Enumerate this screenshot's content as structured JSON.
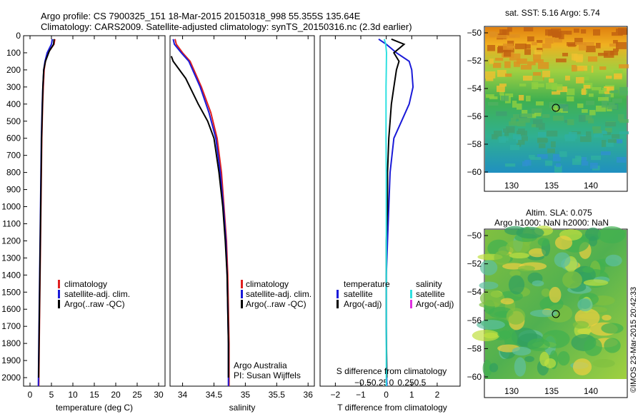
{
  "figure": {
    "title_line1": "Argo profile: CS 7900325_151 18-Mar-2015 20150318_998 55.355S 135.64E",
    "title_line2": "Climatology: CARS2009. Satellite-adjusted climatology: synTS_20150316.nc (2.3d earlier)",
    "credit": "©IMOS 23-Mar-2015 20:42:33",
    "institution": "Argo Australia",
    "pi": "PI: Susan Wijffels"
  },
  "colors": {
    "climatology": "#e02020",
    "satellite": "#1a1ad8",
    "argo": "#000000",
    "salinity_satellite": "#30e0e0",
    "salinity_argo": "#e030e0"
  },
  "chart_data": [
    {
      "id": "temperature",
      "type": "line",
      "xlabel": "temperature (deg C)",
      "ylabel": "",
      "xlim": [
        -1.5,
        31.5
      ],
      "ylim": [
        0,
        2050
      ],
      "xticks": [
        0,
        5,
        10,
        15,
        20,
        25,
        30
      ],
      "yticks": [
        0,
        100,
        200,
        300,
        400,
        500,
        600,
        700,
        800,
        900,
        1000,
        1100,
        1200,
        1300,
        1400,
        1500,
        1600,
        1700,
        1800,
        1900,
        2000
      ],
      "legend": [
        "climatology",
        "satellite-adj. clim.",
        "Argo(..raw -QC)"
      ],
      "series": [
        {
          "name": "climatology",
          "x": [
            5.8,
            5.6,
            4.2,
            3.6,
            3.3,
            3.1,
            2.95,
            2.85,
            2.75,
            2.65,
            2.55,
            2.45,
            2.35,
            2.25,
            2.15,
            2.05
          ],
          "y": [
            20,
            50,
            100,
            150,
            200,
            300,
            400,
            500,
            600,
            800,
            1000,
            1200,
            1400,
            1600,
            1800,
            2050
          ]
        },
        {
          "name": "satellite-adj. clim.",
          "x": [
            5.2,
            5.0,
            4.0,
            3.5,
            3.2,
            3.0,
            2.85,
            2.75,
            2.65,
            2.55,
            2.45,
            2.35,
            2.25,
            2.15,
            2.05,
            1.95
          ],
          "y": [
            20,
            50,
            100,
            150,
            200,
            300,
            400,
            500,
            600,
            800,
            1000,
            1200,
            1400,
            1600,
            1800,
            2050
          ]
        },
        {
          "name": "Argo(..raw -QC)",
          "x": [
            5.6,
            5.5,
            4.5,
            3.6,
            3.2,
            3.0,
            2.9,
            2.8,
            2.7,
            2.6,
            2.5,
            2.4,
            2.3,
            2.2,
            2.1,
            2.0
          ],
          "y": [
            20,
            50,
            90,
            150,
            200,
            300,
            400,
            500,
            600,
            800,
            1000,
            1200,
            1400,
            1600,
            1800,
            2000
          ]
        }
      ]
    },
    {
      "id": "salinity",
      "type": "line",
      "xlabel": "salinity",
      "ylabel": "",
      "xlim": [
        33.8,
        36.1
      ],
      "ylim": [
        0,
        2050
      ],
      "xticks": [
        34,
        34.5,
        35,
        35.5,
        36
      ],
      "xtick_labels": [
        "34",
        "34.5",
        "35",
        "35.5",
        "36"
      ],
      "legend": [
        "climatology",
        "satellite-adj. clim.",
        "Argo(..raw -QC)"
      ],
      "series": [
        {
          "name": "climatology",
          "x": [
            33.88,
            33.9,
            34.0,
            34.12,
            34.3,
            34.45,
            34.55,
            34.62,
            34.66,
            34.7,
            34.72,
            34.73,
            34.74,
            34.74
          ],
          "y": [
            20,
            50,
            100,
            150,
            300,
            450,
            600,
            800,
            1000,
            1200,
            1400,
            1600,
            1800,
            2050
          ]
        },
        {
          "name": "satellite-adj. clim.",
          "x": [
            33.85,
            33.87,
            33.98,
            34.1,
            34.28,
            34.42,
            34.53,
            34.6,
            34.65,
            34.69,
            34.71,
            34.72,
            34.73,
            34.73
          ],
          "y": [
            20,
            50,
            100,
            150,
            300,
            450,
            600,
            800,
            1000,
            1200,
            1400,
            1600,
            1800,
            2050
          ]
        },
        {
          "name": "Argo(..raw -QC)",
          "x": [
            33.82,
            33.85,
            33.95,
            34.05,
            34.25,
            34.4,
            34.5,
            34.58,
            34.64,
            34.68,
            34.71,
            34.72,
            34.73,
            34.73
          ],
          "y": [
            120,
            150,
            200,
            250,
            400,
            500,
            600,
            800,
            1000,
            1200,
            1400,
            1600,
            1800,
            2000
          ]
        }
      ]
    },
    {
      "id": "difference",
      "type": "line",
      "xlabel": "T difference from climatology",
      "xlabel_top": "S difference from climatology",
      "xlim": [
        -2.6,
        2.9
      ],
      "ylim": [
        0,
        2050
      ],
      "xticks": [
        -2,
        -1,
        0,
        1,
        2
      ],
      "s_xticks": [
        -0.5,
        -0.25,
        0,
        0.25,
        0.5
      ],
      "s_xtick_labels": [
        "−0.5",
        "−0.25",
        "0",
        "0.25",
        "0.5"
      ],
      "legend_temperature_title": "temperature",
      "legend_salinity_title": "salinity",
      "legend_temperature": [
        "satellite",
        "Argo(-adj)"
      ],
      "legend_salinity": [
        "satellite",
        "Argo(-adj)"
      ],
      "series": [
        {
          "name": "temperature satellite",
          "x": [
            -0.3,
            0.0,
            0.4,
            0.9,
            1.0,
            1.05,
            0.9,
            0.6,
            0.3,
            0.15,
            0.1,
            0.05,
            0.0,
            0.0,
            0.02
          ],
          "y": [
            20,
            50,
            100,
            150,
            200,
            300,
            400,
            500,
            600,
            800,
            1000,
            1200,
            1400,
            1700,
            2050
          ]
        },
        {
          "name": "temperature Argo(-adj)",
          "x": [
            0.2,
            0.7,
            0.3,
            0.5,
            0.4,
            0.3,
            0.2,
            0.15,
            0.1,
            0.05,
            0.05,
            0.0,
            0.0,
            0.0,
            0.02
          ],
          "y": [
            20,
            50,
            100,
            150,
            200,
            300,
            400,
            500,
            600,
            800,
            1000,
            1200,
            1400,
            1700,
            2000
          ]
        },
        {
          "name": "salinity satellite",
          "x": [
            -0.08,
            -0.02,
            0.01,
            0.0,
            -0.01,
            -0.01,
            -0.01,
            0.0,
            0.0,
            0.0,
            0.0,
            0.0
          ],
          "y": [
            20,
            50,
            100,
            200,
            300,
            400,
            600,
            800,
            1000,
            1400,
            1700,
            2050
          ]
        }
      ]
    }
  ],
  "maps": [
    {
      "id": "sst",
      "title": "sat. SST: 5.16 Argo: 5.74",
      "xticks": [
        "130",
        "135",
        "140"
      ],
      "yticks": [
        "-50",
        "-52",
        "-54",
        "-56",
        "-58",
        "-60"
      ]
    },
    {
      "id": "sla",
      "title1": "Altim. SLA: 0.075",
      "title2": "Argo h1000: NaN h2000: NaN",
      "xticks": [
        "130",
        "135",
        "140"
      ],
      "yticks": [
        "-50",
        "-52",
        "-54",
        "-56",
        "-58",
        "-60"
      ]
    }
  ]
}
